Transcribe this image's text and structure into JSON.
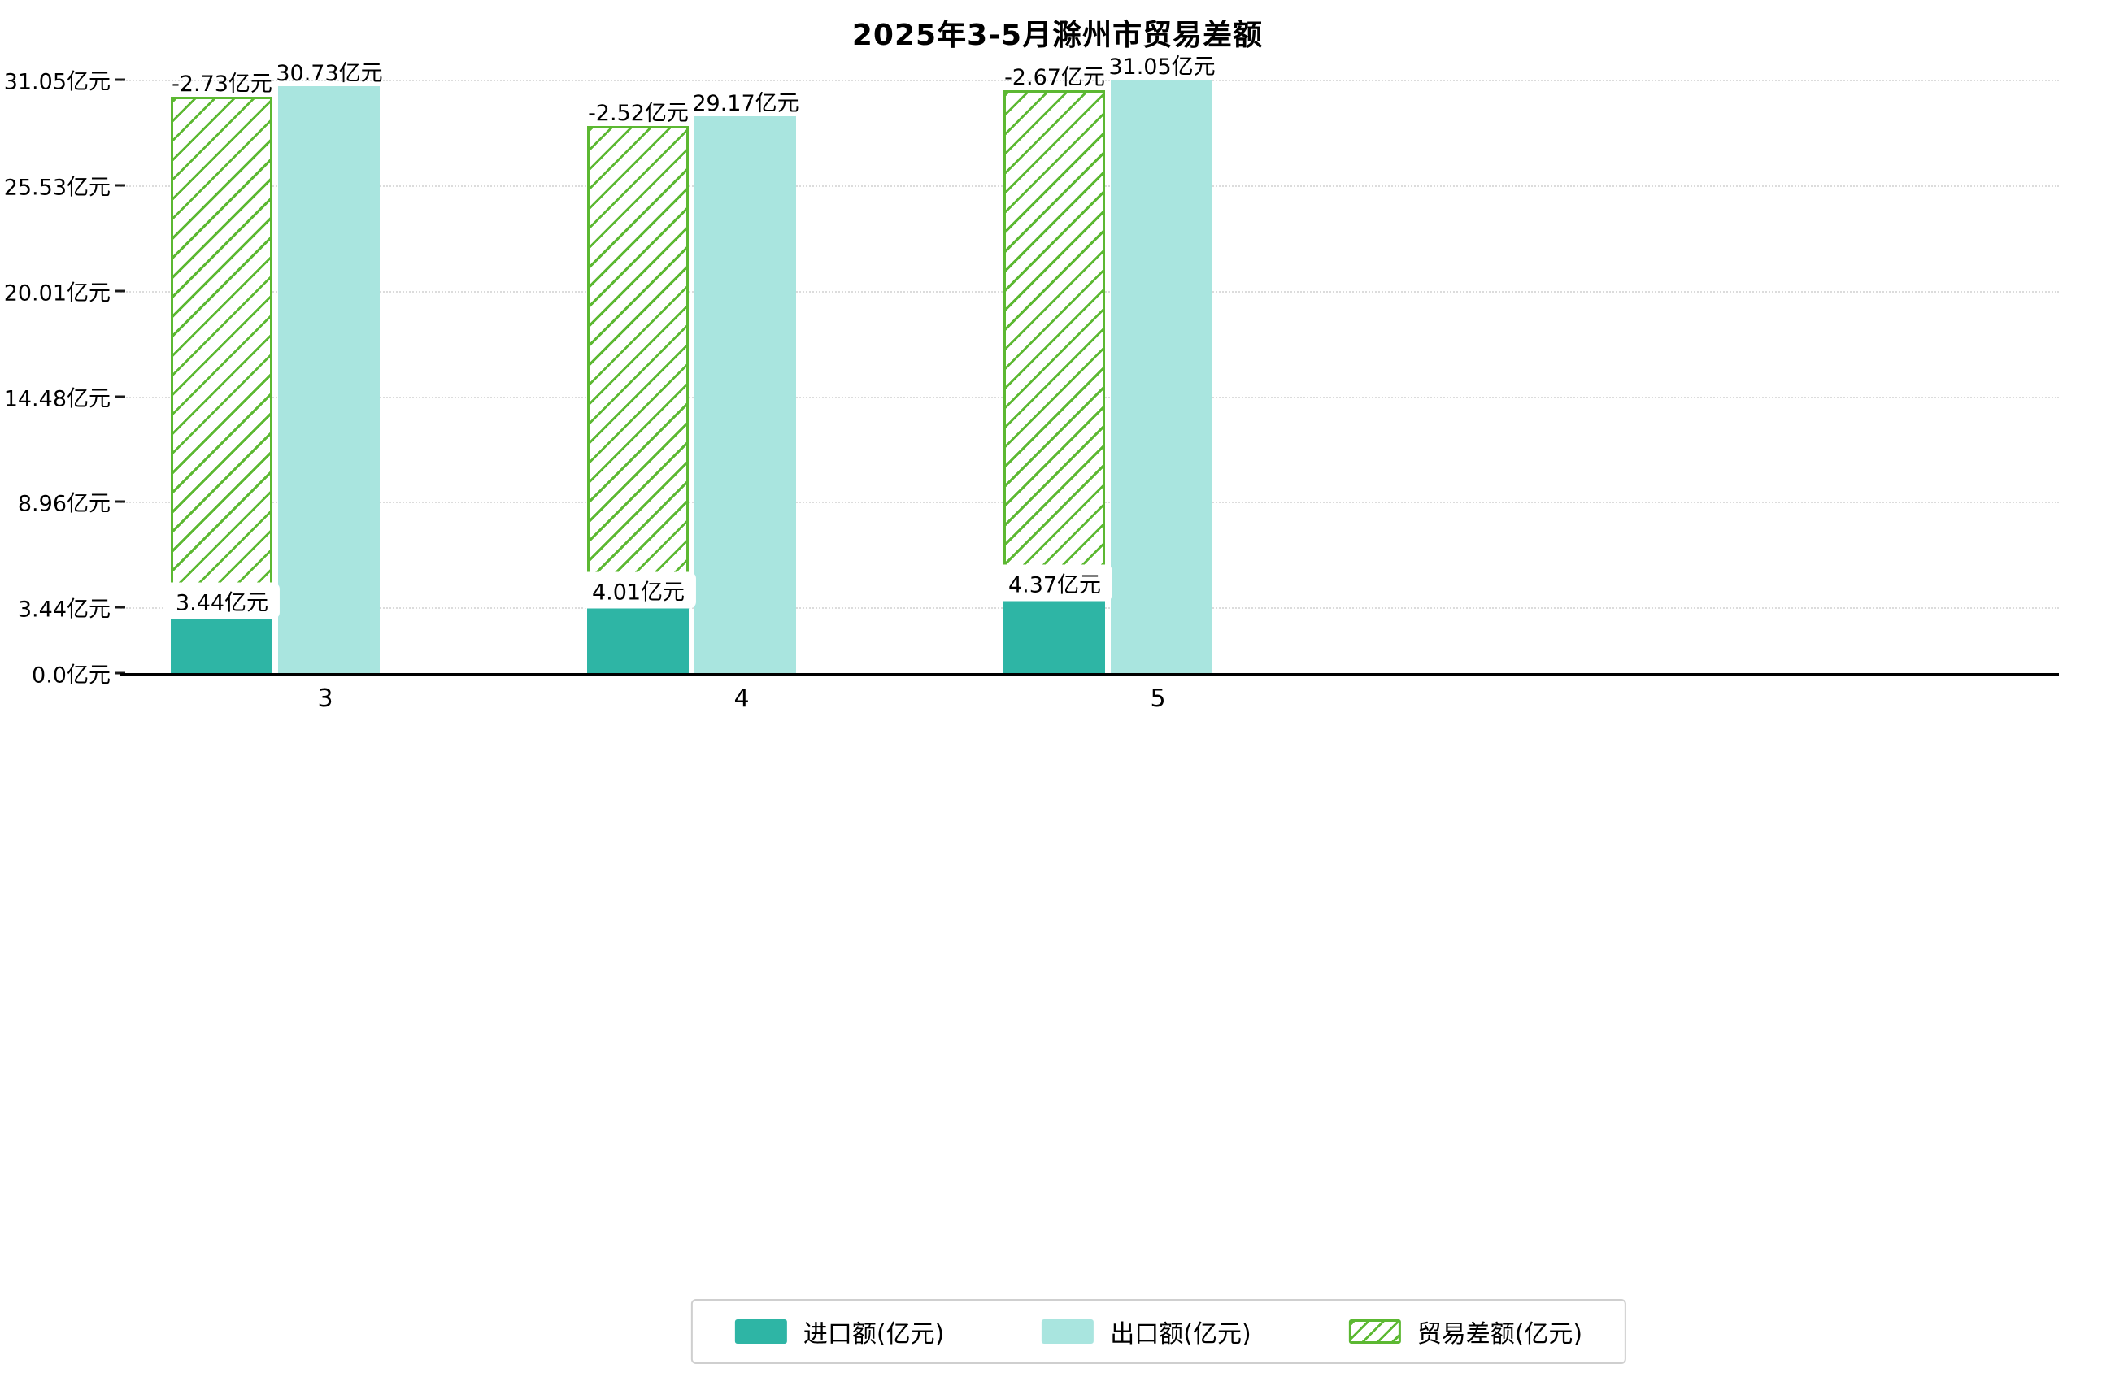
{
  "title": "2025年3-5月滁州市贸易差额",
  "colors": {
    "import": "#2eb5a5",
    "export": "#a9e5df",
    "balance_line": "#5cb832",
    "grid": "#dcdcdc",
    "axis": "#000000",
    "background": "#ffffff"
  },
  "legend": [
    {
      "label": "进口额(亿元)"
    },
    {
      "label": "出口额(亿元)"
    },
    {
      "label": "贸易差额(亿元)"
    }
  ],
  "y_axis": {
    "ticks": [
      {
        "label": "0.0亿元",
        "value": 0.0
      },
      {
        "label": "3.44亿元",
        "value": 3.44
      },
      {
        "label": "8.96亿元",
        "value": 8.96
      },
      {
        "label": "14.48亿元",
        "value": 14.48
      },
      {
        "label": "20.01亿元",
        "value": 20.01
      },
      {
        "label": "25.53亿元",
        "value": 25.53
      },
      {
        "label": "31.05亿元",
        "value": 31.05
      }
    ]
  },
  "chart_data": {
    "type": "bar",
    "title": "2025年3-5月滁州市贸易差额",
    "categories": [
      "3",
      "4",
      "5"
    ],
    "series": [
      {
        "name": "进口额(亿元)",
        "values": [
          3.44,
          4.01,
          4.37
        ],
        "labels": [
          "3.44亿元",
          "4.01亿元",
          "4.37亿元"
        ]
      },
      {
        "name": "出口额(亿元)",
        "values": [
          30.73,
          29.17,
          31.05
        ],
        "labels": [
          "30.73亿元",
          "29.17亿元",
          "31.05亿元"
        ]
      },
      {
        "name": "贸易差额(亿元)",
        "values": [
          -2.73,
          -2.52,
          -2.67
        ],
        "labels": [
          "-2.73亿元",
          "-2.52亿元",
          "-2.67亿元"
        ]
      }
    ],
    "ylim": [
      0,
      31.05
    ],
    "grid": true,
    "legend_position": "bottom"
  }
}
